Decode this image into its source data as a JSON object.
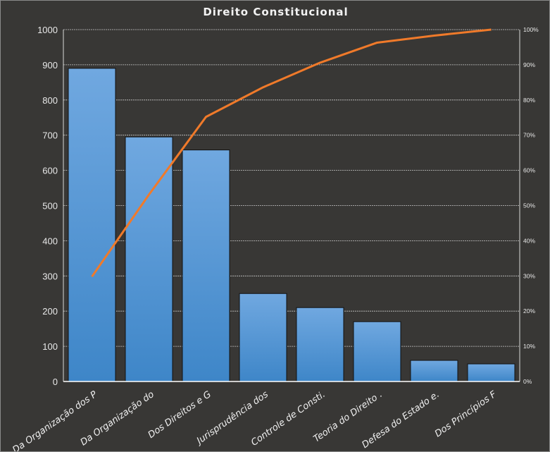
{
  "chart_data": {
    "type": "bar",
    "title": "Direito  Constitucional",
    "categories": [
      "Da Organização dos P",
      "Da Organização do",
      "Dos Direitos e G",
      "Jurisprudência  dos",
      "Controle  de Consti.",
      "Teoria do Direito   .",
      "Defesa do Estado e.",
      "Dos Princípios F"
    ],
    "values": [
      890,
      695,
      658,
      250,
      210,
      170,
      60,
      50
    ],
    "cumulative_percent": [
      29.8,
      53.1,
      75.2,
      83.6,
      90.6,
      96.3,
      98.3,
      100
    ],
    "ylim": [
      0,
      1000
    ],
    "y_ticks": [
      "0",
      "100",
      "200",
      "300",
      "400",
      "500",
      "600",
      "700",
      "800",
      "900",
      "1000"
    ],
    "y2lim": [
      0,
      100
    ],
    "y2_ticks": [
      "0%",
      "10%",
      "20%",
      "30%",
      "40%",
      "50%",
      "60%",
      "70%",
      "80%",
      "90%",
      "100%"
    ],
    "grid": true,
    "legend": "none",
    "colors": {
      "bar_top": "#70a8e0",
      "bar_bottom": "#3e86c8",
      "line": "#f07a2a"
    }
  }
}
